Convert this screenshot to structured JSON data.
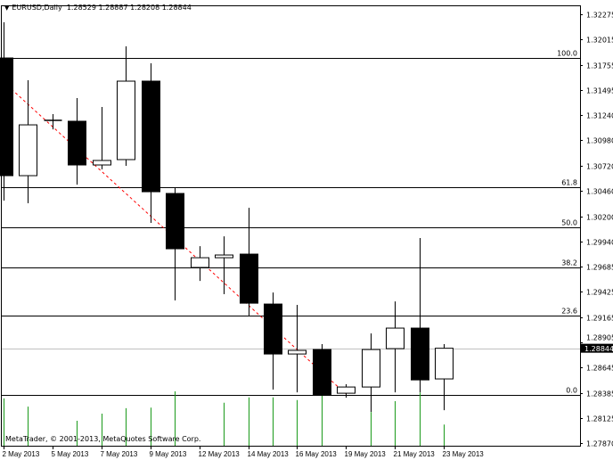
{
  "header": {
    "menu_icon": "triangle-down-icon",
    "symbol": "EURUSD,Daily",
    "ohlc": "1.28529 1.28887 1.28208 1.28844"
  },
  "copyright": "MetaTrader, © 2001-2013, MetaQuotes Software Corp.",
  "colors": {
    "bear_body": "#000000",
    "bull_body": "#ffffff",
    "volume": "#1a9a1a",
    "trendline": "#ff0000",
    "grid": "#000000",
    "bid_line": "#c0c0c0",
    "bid_label_bg": "#000000"
  },
  "chart_data": {
    "type": "candlestick",
    "symbol": "EURUSD",
    "timeframe": "Daily",
    "ylim": [
      1.2787,
      1.32275
    ],
    "price_ticks": [
      "1.32275",
      "1.32015",
      "1.31755",
      "1.31495",
      "1.31240",
      "1.30980",
      "1.30720",
      "1.30460",
      "1.30200",
      "1.29940",
      "1.29685",
      "1.29425",
      "1.29165",
      "1.28905",
      "1.28645",
      "1.28385",
      "1.28125",
      "1.27870"
    ],
    "current_price_label": "1.28844",
    "current_price": 1.28844,
    "date_labels": [
      {
        "label": "2 May 2013",
        "index": 0
      },
      {
        "label": "5 May 2013",
        "index": 2
      },
      {
        "label": "7 May 2013",
        "index": 4
      },
      {
        "label": "9 May 2013",
        "index": 6
      },
      {
        "label": "12 May 2013",
        "index": 8
      },
      {
        "label": "14 May 2013",
        "index": 10
      },
      {
        "label": "16 May 2013",
        "index": 12
      },
      {
        "label": "19 May 2013",
        "index": 14
      },
      {
        "label": "21 May 2013",
        "index": 16
      },
      {
        "label": "23 May 2013",
        "index": 18
      }
    ],
    "candles": [
      {
        "o": 1.31826,
        "h": 1.32193,
        "l": 1.30361,
        "c": 1.30617
      },
      {
        "o": 1.30617,
        "h": 1.31597,
        "l": 1.30333,
        "c": 1.31139
      },
      {
        "o": 1.31185,
        "h": 1.31249,
        "l": 1.31093,
        "c": 1.31185
      },
      {
        "o": 1.31176,
        "h": 1.31414,
        "l": 1.30525,
        "c": 1.30727
      },
      {
        "o": 1.30727,
        "h": 1.31322,
        "l": 1.30681,
        "c": 1.30773
      },
      {
        "o": 1.30782,
        "h": 1.31945,
        "l": 1.30718,
        "c": 1.31588
      },
      {
        "o": 1.31588,
        "h": 1.31771,
        "l": 1.30132,
        "c": 1.30452
      },
      {
        "o": 1.30434,
        "h": 1.30498,
        "l": 1.29335,
        "c": 1.29866
      },
      {
        "o": 1.29674,
        "h": 1.29893,
        "l": 1.29536,
        "c": 1.29774
      },
      {
        "o": 1.29774,
        "h": 1.29994,
        "l": 1.29399,
        "c": 1.29802
      },
      {
        "o": 1.29811,
        "h": 1.30287,
        "l": 1.2917,
        "c": 1.29307
      },
      {
        "o": 1.29298,
        "h": 1.29417,
        "l": 1.28419,
        "c": 1.28785
      },
      {
        "o": 1.28785,
        "h": 1.29289,
        "l": 1.28391,
        "c": 1.28822
      },
      {
        "o": 1.28831,
        "h": 1.28886,
        "l": 1.28355,
        "c": 1.28364
      },
      {
        "o": 1.28382,
        "h": 1.28474,
        "l": 1.28336,
        "c": 1.28446
      },
      {
        "o": 1.28446,
        "h": 1.28996,
        "l": 1.2819,
        "c": 1.28831
      },
      {
        "o": 1.2884,
        "h": 1.29325,
        "l": 1.28391,
        "c": 1.29051
      },
      {
        "o": 1.29051,
        "h": 1.29976,
        "l": 1.28391,
        "c": 1.28519
      },
      {
        "o": 1.28529,
        "h": 1.28887,
        "l": 1.28208,
        "c": 1.28844
      }
    ],
    "volume_relative": [
      0.87,
      0.72,
      0,
      0.46,
      0.59,
      0.69,
      0.7,
      1.0,
      0,
      0.79,
      0.89,
      0.89,
      0.84,
      0.98,
      0,
      0.62,
      0.82,
      0.98,
      0.39
    ],
    "fibonacci": [
      {
        "label": "100.0",
        "price": 1.31826
      },
      {
        "label": "61.8",
        "price": 1.30499
      },
      {
        "label": "50.0",
        "price": 1.30085
      },
      {
        "label": "38.2",
        "price": 1.29675
      },
      {
        "label": "23.6",
        "price": 1.29179
      },
      {
        "label": "0.0",
        "price": 1.28364
      }
    ],
    "trendline": {
      "style": "dashed",
      "from": {
        "index": 0,
        "price": 1.31579
      },
      "to": {
        "index": 14,
        "price": 1.28373
      }
    }
  }
}
